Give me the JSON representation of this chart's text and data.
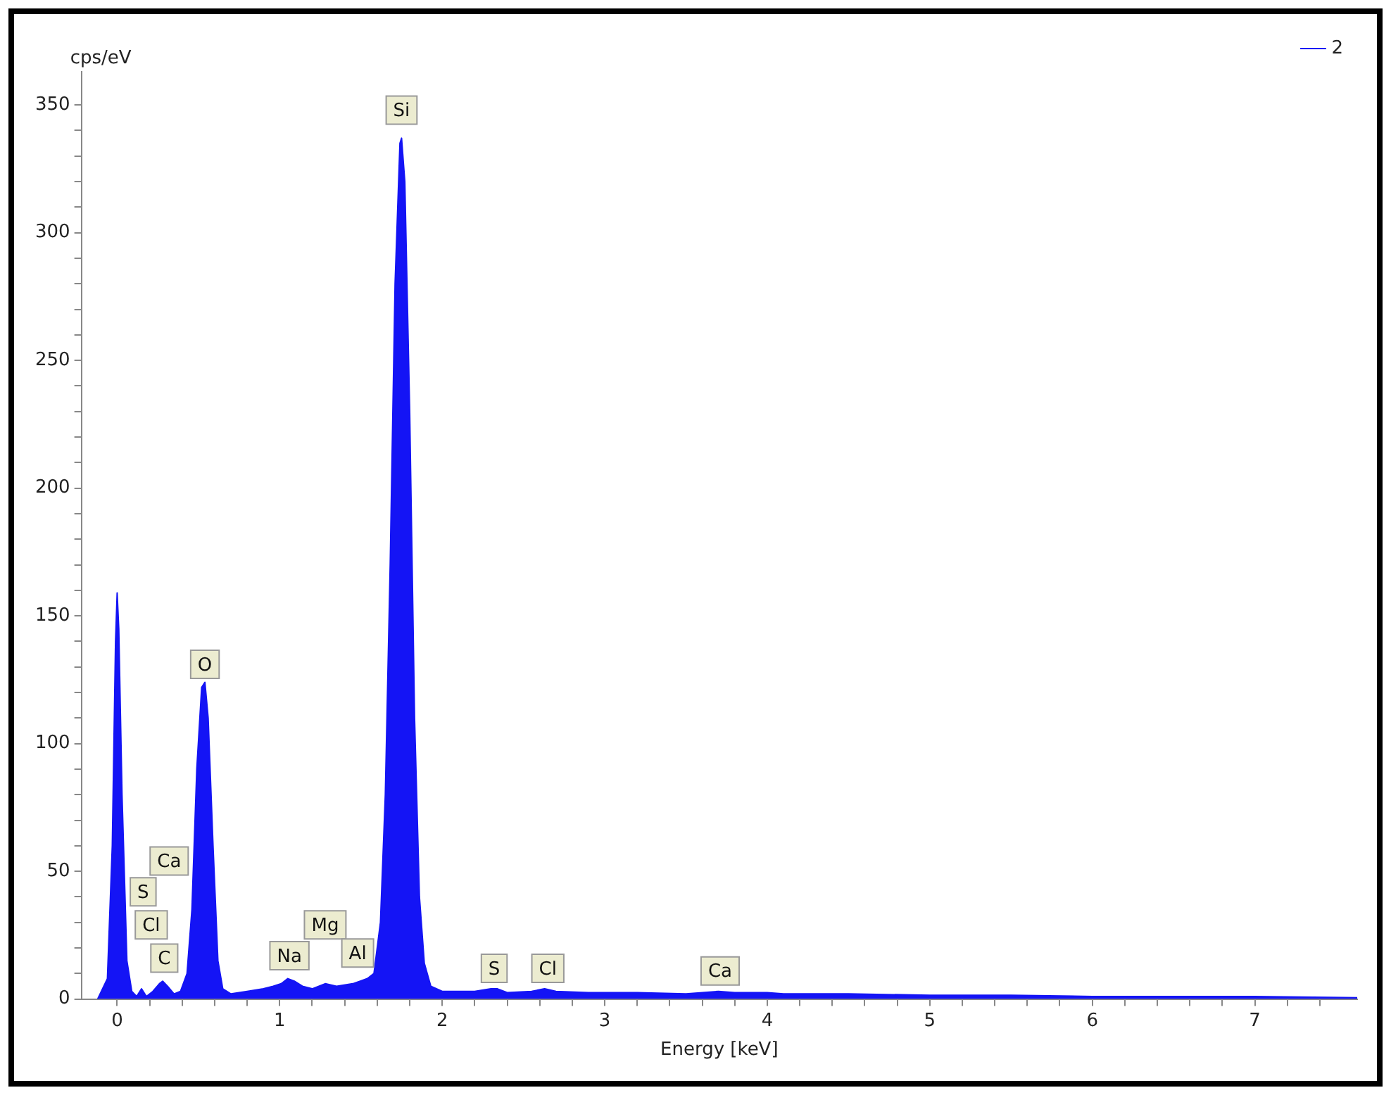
{
  "chart_data": {
    "type": "area",
    "xlabel": "Energy [keV]",
    "ylabel": "cps/eV",
    "xlim": [
      -0.22,
      7.63
    ],
    "ylim": [
      0,
      363
    ],
    "xticks": [
      0,
      {
        "value": 0.2,
        "label": null
      },
      {
        "value": 0.4,
        "label": null
      },
      {
        "value": 0.6,
        "label": null
      },
      {
        "value": 0.8,
        "label": null
      },
      1,
      {
        "value": 1.2,
        "label": null
      },
      {
        "value": 1.4,
        "label": null
      },
      {
        "value": 1.6,
        "label": null
      },
      {
        "value": 1.8,
        "label": null
      },
      2,
      {
        "value": 2.2,
        "label": null
      },
      {
        "value": 2.4,
        "label": null
      },
      {
        "value": 2.6,
        "label": null
      },
      {
        "value": 2.8,
        "label": null
      },
      3,
      {
        "value": 3.2,
        "label": null
      },
      {
        "value": 3.4,
        "label": null
      },
      {
        "value": 3.6,
        "label": null
      },
      {
        "value": 3.8,
        "label": null
      },
      4,
      {
        "value": 4.2,
        "label": null
      },
      {
        "value": 4.4,
        "label": null
      },
      {
        "value": 4.6,
        "label": null
      },
      {
        "value": 4.8,
        "label": null
      },
      5,
      {
        "value": 5.2,
        "label": null
      },
      {
        "value": 5.4,
        "label": null
      },
      {
        "value": 5.6,
        "label": null
      },
      {
        "value": 5.8,
        "label": null
      },
      6,
      {
        "value": 6.2,
        "label": null
      },
      {
        "value": 6.4,
        "label": null
      },
      {
        "value": 6.6,
        "label": null
      },
      {
        "value": 6.8,
        "label": null
      },
      7,
      {
        "value": 7.2,
        "label": null
      },
      {
        "value": 7.4,
        "label": null
      }
    ],
    "yticks": [
      0,
      {
        "value": 10,
        "label": null
      },
      {
        "value": 20,
        "label": null
      },
      {
        "value": 30,
        "label": null
      },
      {
        "value": 40,
        "label": null
      },
      50,
      {
        "value": 60,
        "label": null
      },
      {
        "value": 70,
        "label": null
      },
      {
        "value": 80,
        "label": null
      },
      {
        "value": 90,
        "label": null
      },
      100,
      {
        "value": 110,
        "label": null
      },
      {
        "value": 120,
        "label": null
      },
      {
        "value": 130,
        "label": null
      },
      {
        "value": 140,
        "label": null
      },
      150,
      {
        "value": 160,
        "label": null
      },
      {
        "value": 170,
        "label": null
      },
      {
        "value": 180,
        "label": null
      },
      {
        "value": 190,
        "label": null
      },
      200,
      {
        "value": 210,
        "label": null
      },
      {
        "value": 220,
        "label": null
      },
      {
        "value": 230,
        "label": null
      },
      {
        "value": 240,
        "label": null
      },
      250,
      {
        "value": 260,
        "label": null
      },
      {
        "value": 270,
        "label": null
      },
      {
        "value": 280,
        "label": null
      },
      {
        "value": 290,
        "label": null
      },
      300,
      {
        "value": 310,
        "label": null
      },
      {
        "value": 320,
        "label": null
      },
      {
        "value": 330,
        "label": null
      },
      {
        "value": 340,
        "label": null
      },
      350
    ],
    "grid": false,
    "legend": "top right",
    "marker": "none",
    "series": [
      {
        "name": "2",
        "color": "#1414f5",
        "x": [
          -0.12,
          -0.06,
          -0.03,
          -0.01,
          0.0,
          0.01,
          0.03,
          0.06,
          0.09,
          0.12,
          0.15,
          0.18,
          0.22,
          0.26,
          0.28,
          0.31,
          0.35,
          0.39,
          0.43,
          0.46,
          0.49,
          0.52,
          0.54,
          0.56,
          0.59,
          0.62,
          0.65,
          0.7,
          0.8,
          0.9,
          0.96,
          1.01,
          1.05,
          1.09,
          1.14,
          1.2,
          1.28,
          1.35,
          1.45,
          1.54,
          1.58,
          1.62,
          1.65,
          1.68,
          1.71,
          1.74,
          1.75,
          1.77,
          1.8,
          1.83,
          1.86,
          1.89,
          1.93,
          2.0,
          2.2,
          2.3,
          2.34,
          2.4,
          2.55,
          2.63,
          2.7,
          2.9,
          3.2,
          3.5,
          3.7,
          3.8,
          4.0,
          4.1,
          4.5,
          5.0,
          5.5,
          6.0,
          6.5,
          7.0,
          7.63
        ],
        "values": [
          0,
          8,
          60,
          140,
          159,
          145,
          80,
          15,
          3,
          1,
          4,
          1,
          3,
          6,
          7,
          5,
          2,
          3,
          10,
          35,
          90,
          122,
          124,
          110,
          60,
          15,
          4,
          2,
          3,
          4,
          5,
          6,
          8,
          7,
          5,
          4,
          6,
          5,
          6,
          8,
          10,
          30,
          80,
          170,
          280,
          335,
          337,
          320,
          230,
          110,
          40,
          14,
          5,
          3,
          3,
          4,
          4,
          2.5,
          3,
          4,
          3,
          2.5,
          2.5,
          2,
          3,
          2.5,
          2.5,
          2,
          2,
          1.5,
          1.5,
          1,
          1,
          1,
          0.5
        ]
      }
    ],
    "annotations": [
      {
        "text": "Ca",
        "x": 0.32,
        "y": 54
      },
      {
        "text": "S",
        "x": 0.16,
        "y": 42
      },
      {
        "text": "Cl",
        "x": 0.21,
        "y": 29
      },
      {
        "text": "C",
        "x": 0.29,
        "y": 16
      },
      {
        "text": "O",
        "x": 0.54,
        "y": 131
      },
      {
        "text": "Na",
        "x": 1.06,
        "y": 17
      },
      {
        "text": "Mg",
        "x": 1.28,
        "y": 29
      },
      {
        "text": "Al",
        "x": 1.48,
        "y": 18
      },
      {
        "text": "Si",
        "x": 1.75,
        "y": 348
      },
      {
        "text": "S",
        "x": 2.32,
        "y": 12
      },
      {
        "text": "Cl",
        "x": 2.65,
        "y": 12
      },
      {
        "text": "Ca",
        "x": 3.71,
        "y": 11
      }
    ]
  }
}
